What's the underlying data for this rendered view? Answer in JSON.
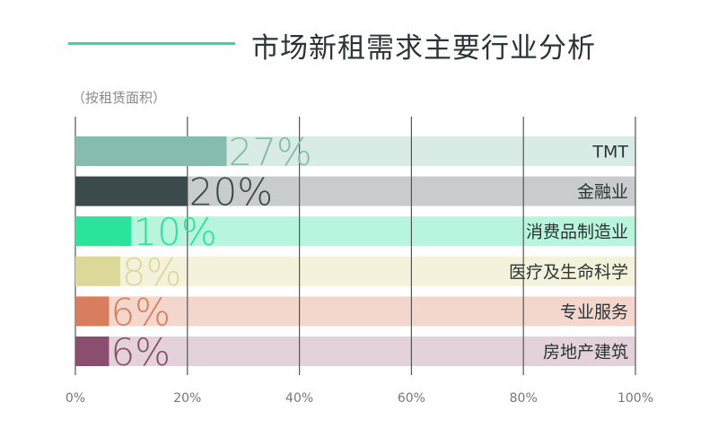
{
  "title": "市场新租需求主要行业分析",
  "subtitle": "（按租赁面积）",
  "chart_data": {
    "type": "bar",
    "orientation": "horizontal",
    "categories": [
      "TMT",
      "金融业",
      "消费品制造业",
      "医疗及生命科学",
      "专业服务",
      "房地产建筑"
    ],
    "values": [
      27,
      20,
      10,
      8,
      6,
      6
    ],
    "value_labels": [
      "27%",
      "20%",
      "10%",
      "8%",
      "6%",
      "6%"
    ],
    "xlim": [
      0,
      100
    ],
    "xticks": [
      "0%",
      "20%",
      "40%",
      "60%",
      "80%",
      "100%"
    ],
    "grid": true,
    "colors": {
      "bars": [
        "#86bcb0",
        "#3b4a4a",
        "#2be39a",
        "#dcd89a",
        "#d87e5e",
        "#8a4f6e"
      ],
      "tracks": [
        "#d8ebe5",
        "#c8cccc",
        "#b8f5dd",
        "#f4f2da",
        "#f4d7cc",
        "#e3d2da"
      ],
      "value_text": [
        "#86bcb0",
        "#3b4a4a",
        "#2be39a",
        "#dcd89a",
        "#d87e5e",
        "#8a4f6e"
      ],
      "grid": "#555555",
      "tick_text": "#777777"
    }
  }
}
